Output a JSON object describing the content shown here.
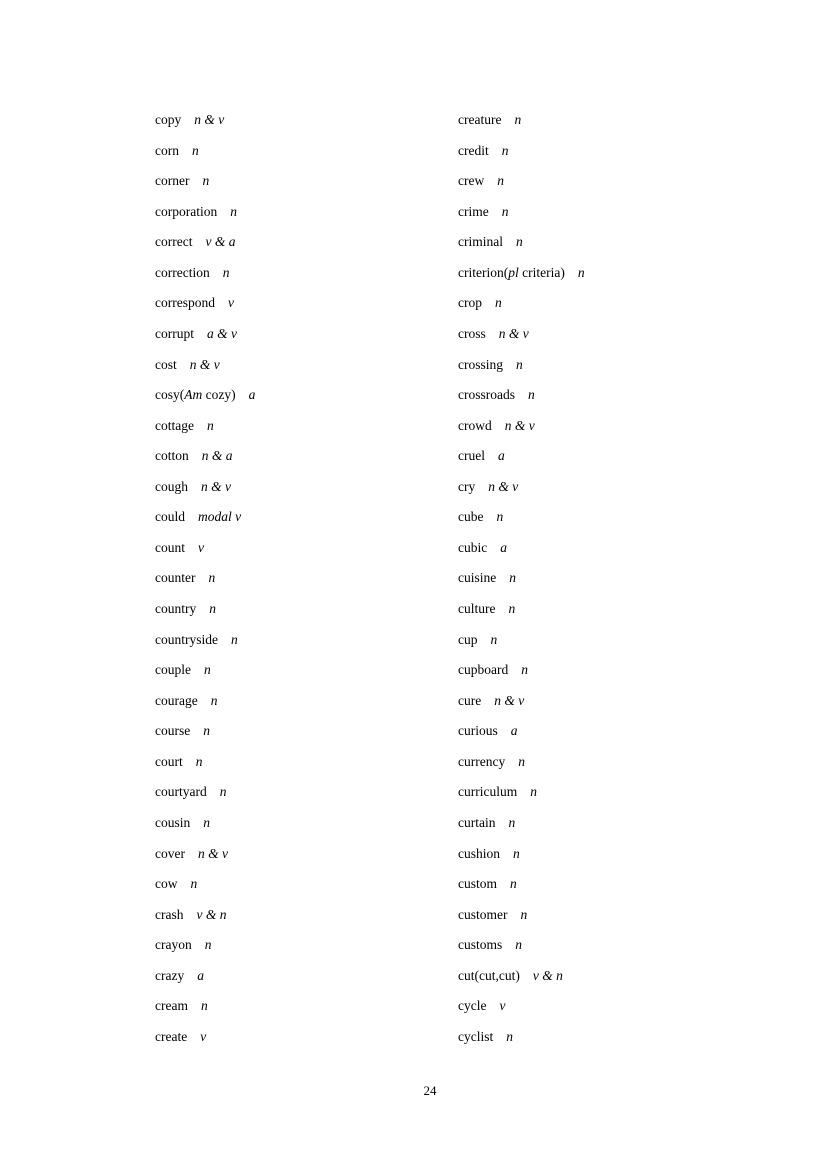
{
  "left_column": [
    {
      "word": "copy",
      "pos": "n & v"
    },
    {
      "word": "corn",
      "pos": "n"
    },
    {
      "word": "corner",
      "pos": "n"
    },
    {
      "word": "corporation",
      "pos": "n"
    },
    {
      "word": "correct",
      "pos": "v & a"
    },
    {
      "word": "correction",
      "pos": "n"
    },
    {
      "word": "correspond",
      "pos": "v"
    },
    {
      "word": "corrupt",
      "pos": "a & v"
    },
    {
      "word": "cost",
      "pos": "n & v"
    },
    {
      "word": "cosy(",
      "word_italic": "Am",
      "word_after": " cozy)",
      "pos": "a"
    },
    {
      "word": "cottage",
      "pos": "n"
    },
    {
      "word": "cotton",
      "pos": "n & a"
    },
    {
      "word": "cough",
      "pos": "n & v"
    },
    {
      "word": "could",
      "pos": "modal v"
    },
    {
      "word": "count",
      "pos": "v"
    },
    {
      "word": "counter",
      "pos": "n"
    },
    {
      "word": "country",
      "pos": "n"
    },
    {
      "word": "countryside",
      "pos": "n"
    },
    {
      "word": "couple",
      "pos": "n"
    },
    {
      "word": "courage",
      "pos": "n"
    },
    {
      "word": "course",
      "pos": "n"
    },
    {
      "word": "court",
      "pos": "n"
    },
    {
      "word": "courtyard",
      "pos": "n"
    },
    {
      "word": "cousin",
      "pos": "n"
    },
    {
      "word": "cover",
      "pos": "n & v"
    },
    {
      "word": "cow",
      "pos": "n"
    },
    {
      "word": "crash",
      "pos": "v & n"
    },
    {
      "word": "crayon",
      "pos": "n"
    },
    {
      "word": "crazy",
      "pos": "a"
    },
    {
      "word": "cream",
      "pos": "n"
    },
    {
      "word": "create",
      "pos": "v"
    }
  ],
  "right_column": [
    {
      "word": "creature",
      "pos": "n"
    },
    {
      "word": "credit",
      "pos": "n"
    },
    {
      "word": "crew",
      "pos": "n"
    },
    {
      "word": "crime",
      "pos": "n"
    },
    {
      "word": "criminal",
      "pos": "n"
    },
    {
      "word": "criterion(",
      "word_italic": "pl",
      "word_after": " criteria)",
      "pos": "n"
    },
    {
      "word": "crop",
      "pos": "n"
    },
    {
      "word": "cross",
      "pos": "n & v"
    },
    {
      "word": "crossing",
      "pos": "n"
    },
    {
      "word": "crossroads",
      "pos": "n"
    },
    {
      "word": "crowd",
      "pos": "n & v"
    },
    {
      "word": "cruel",
      "pos": "a"
    },
    {
      "word": "cry",
      "pos": "n & v"
    },
    {
      "word": "cube",
      "pos": "n"
    },
    {
      "word": "cubic",
      "pos": "a"
    },
    {
      "word": "cuisine",
      "pos": "n"
    },
    {
      "word": "culture",
      "pos": "n"
    },
    {
      "word": "cup",
      "pos": "n"
    },
    {
      "word": "cupboard",
      "pos": "n"
    },
    {
      "word": "cure",
      "pos": "n & v"
    },
    {
      "word": "curious",
      "pos": "a"
    },
    {
      "word": "currency",
      "pos": "n"
    },
    {
      "word": "curriculum",
      "pos": "n"
    },
    {
      "word": "curtain",
      "pos": "n"
    },
    {
      "word": "cushion",
      "pos": "n"
    },
    {
      "word": "custom",
      "pos": "n"
    },
    {
      "word": "customer",
      "pos": "n"
    },
    {
      "word": "customs",
      "pos": "n"
    },
    {
      "word": "cut(cut,cut)",
      "pos": "v & n"
    },
    {
      "word": "cycle",
      "pos": "v"
    },
    {
      "word": "cyclist",
      "pos": "n"
    }
  ],
  "page_number": "24"
}
